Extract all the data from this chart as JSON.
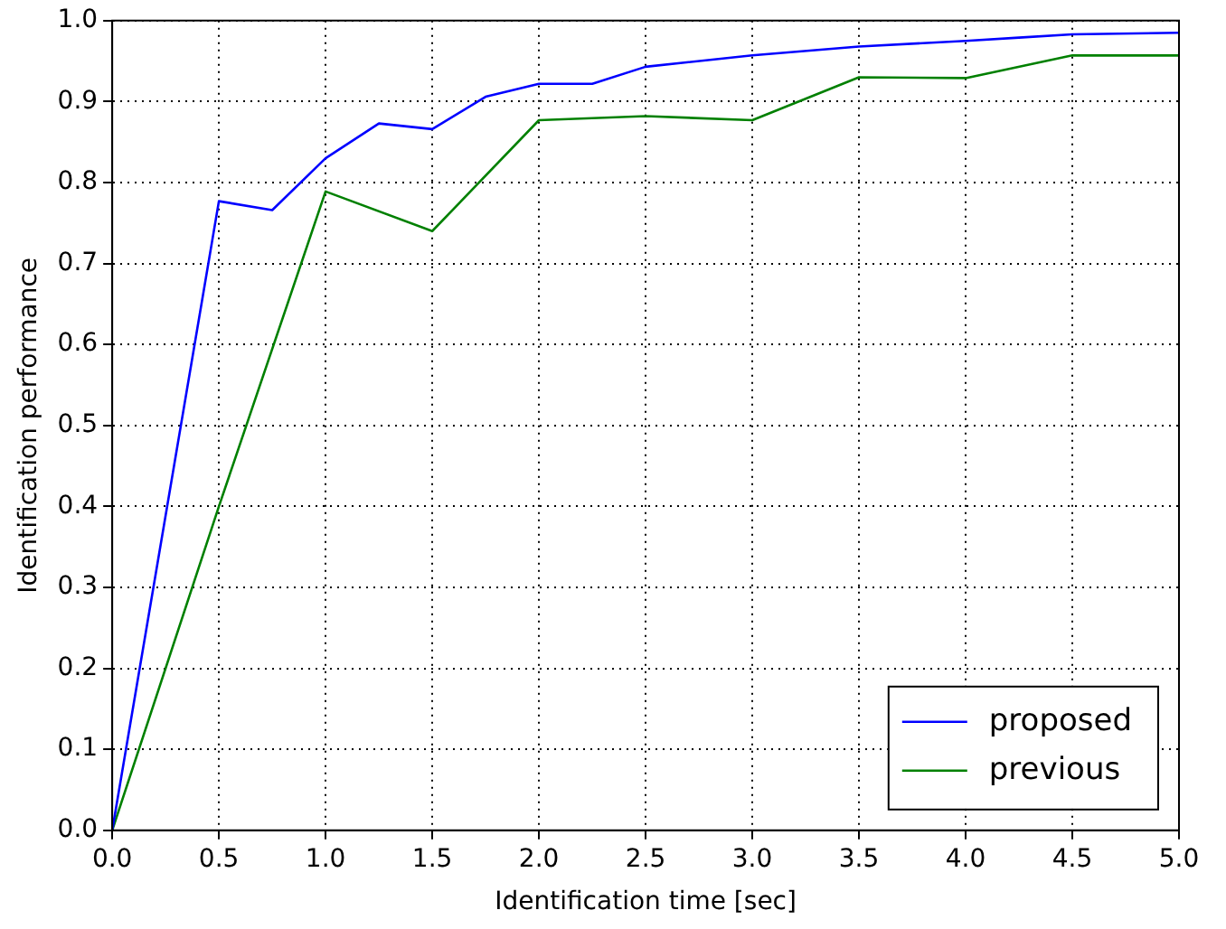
{
  "chart_data": {
    "type": "line",
    "xlabel": "Identification time [sec]",
    "ylabel": "Identification performance",
    "xlim": [
      0,
      5
    ],
    "xticks": [
      {
        "value": 0,
        "label": "0.0"
      },
      {
        "value": 0.5,
        "label": "0.5"
      },
      {
        "value": 1,
        "label": "1.0"
      },
      {
        "value": 1.5,
        "label": "1.5"
      },
      {
        "value": 2,
        "label": "2.0"
      },
      {
        "value": 2.5,
        "label": "2.5"
      },
      {
        "value": 3,
        "label": "3.0"
      },
      {
        "value": 3.5,
        "label": "3.5"
      },
      {
        "value": 4,
        "label": "4.0"
      },
      {
        "value": 4.5,
        "label": "4.5"
      },
      {
        "value": 5,
        "label": "5.0"
      }
    ],
    "ylim": [
      0,
      1
    ],
    "yticks": [
      {
        "value": 0,
        "label": "0.0"
      },
      {
        "value": 0.1,
        "label": "0.1"
      },
      {
        "value": 0.2,
        "label": "0.2"
      },
      {
        "value": 0.3,
        "label": "0.3"
      },
      {
        "value": 0.4,
        "label": "0.4"
      },
      {
        "value": 0.5,
        "label": "0.5"
      },
      {
        "value": 0.6,
        "label": "0.6"
      },
      {
        "value": 0.7,
        "label": "0.7"
      },
      {
        "value": 0.8,
        "label": "0.8"
      },
      {
        "value": 0.9,
        "label": "0.9"
      },
      {
        "value": 1,
        "label": "1.0"
      }
    ],
    "grid": true,
    "legend": "bottom right",
    "marker": "none",
    "line_style": "solid",
    "series": [
      {
        "name": "proposed",
        "color": "#0000ff",
        "x": [
          0,
          0.5,
          0.75,
          1,
          1.25,
          1.5,
          1.75,
          2,
          2.25,
          2.5,
          3,
          3.5,
          4,
          4.25,
          4.5,
          5
        ],
        "values": [
          0,
          0.777,
          0.766,
          0.83,
          0.873,
          0.866,
          0.906,
          0.922,
          0.922,
          0.943,
          0.957,
          0.968,
          0.975,
          0.979,
          0.983,
          0.985
        ]
      },
      {
        "name": "previous",
        "color": "#008000",
        "x": [
          0,
          0.5,
          1,
          1.5,
          2,
          2.5,
          3,
          3.5,
          4,
          4.5,
          5
        ],
        "values": [
          0,
          0.4,
          0.789,
          0.74,
          0.877,
          0.882,
          0.877,
          0.93,
          0.929,
          0.957,
          0.957
        ]
      }
    ]
  }
}
